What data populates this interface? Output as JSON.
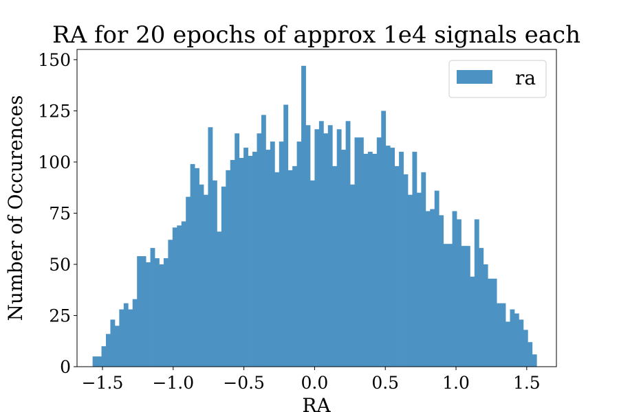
{
  "chart_data": {
    "type": "bar",
    "title": "RA for 20 epochs of approx 1e4 signals each",
    "xlabel": "RA",
    "ylabel": "Number of Occurences",
    "xlim": [
      -1.68,
      1.71
    ],
    "ylim": [
      0,
      155
    ],
    "xticks": [
      -1.5,
      -1.0,
      -0.5,
      0.0,
      0.5,
      1.0,
      1.5
    ],
    "xtick_labels": [
      "−1.5",
      "−1.0",
      "−0.5",
      "0.0",
      "0.5",
      "1.0",
      "1.5"
    ],
    "yticks": [
      0,
      25,
      50,
      75,
      100,
      125,
      150
    ],
    "ytick_labels": [
      "0",
      "25",
      "50",
      "75",
      "100",
      "125",
      "150"
    ],
    "bin_start": -1.57,
    "bin_width": 0.0314,
    "series": [
      {
        "name": "ra",
        "color": "#4c93c4",
        "values": [
          5,
          5,
          10,
          16,
          23,
          20,
          28,
          31,
          28,
          33,
          54,
          54,
          51,
          58,
          53,
          50,
          53,
          62,
          68,
          69,
          71,
          83,
          99,
          97,
          89,
          84,
          117,
          91,
          66,
          88,
          96,
          101,
          114,
          102,
          107,
          103,
          105,
          114,
          123,
          106,
          110,
          95,
          110,
          128,
          96,
          98,
          110,
          147,
          118,
          91,
          116,
          120,
          114,
          118,
          98,
          116,
          106,
          120,
          89,
          112,
          112,
          104,
          105,
          104,
          112,
          125,
          108,
          107,
          98,
          105,
          94,
          84,
          105,
          85,
          95,
          76,
          77,
          86,
          74,
          60,
          60,
          76,
          72,
          59,
          59,
          44,
          72,
          58,
          50,
          43,
          43,
          31,
          31,
          22,
          28,
          26,
          23,
          18,
          12,
          6
        ]
      }
    ],
    "legend": {
      "position": "top-right",
      "entries": [
        "ra"
      ]
    },
    "grid": false
  }
}
